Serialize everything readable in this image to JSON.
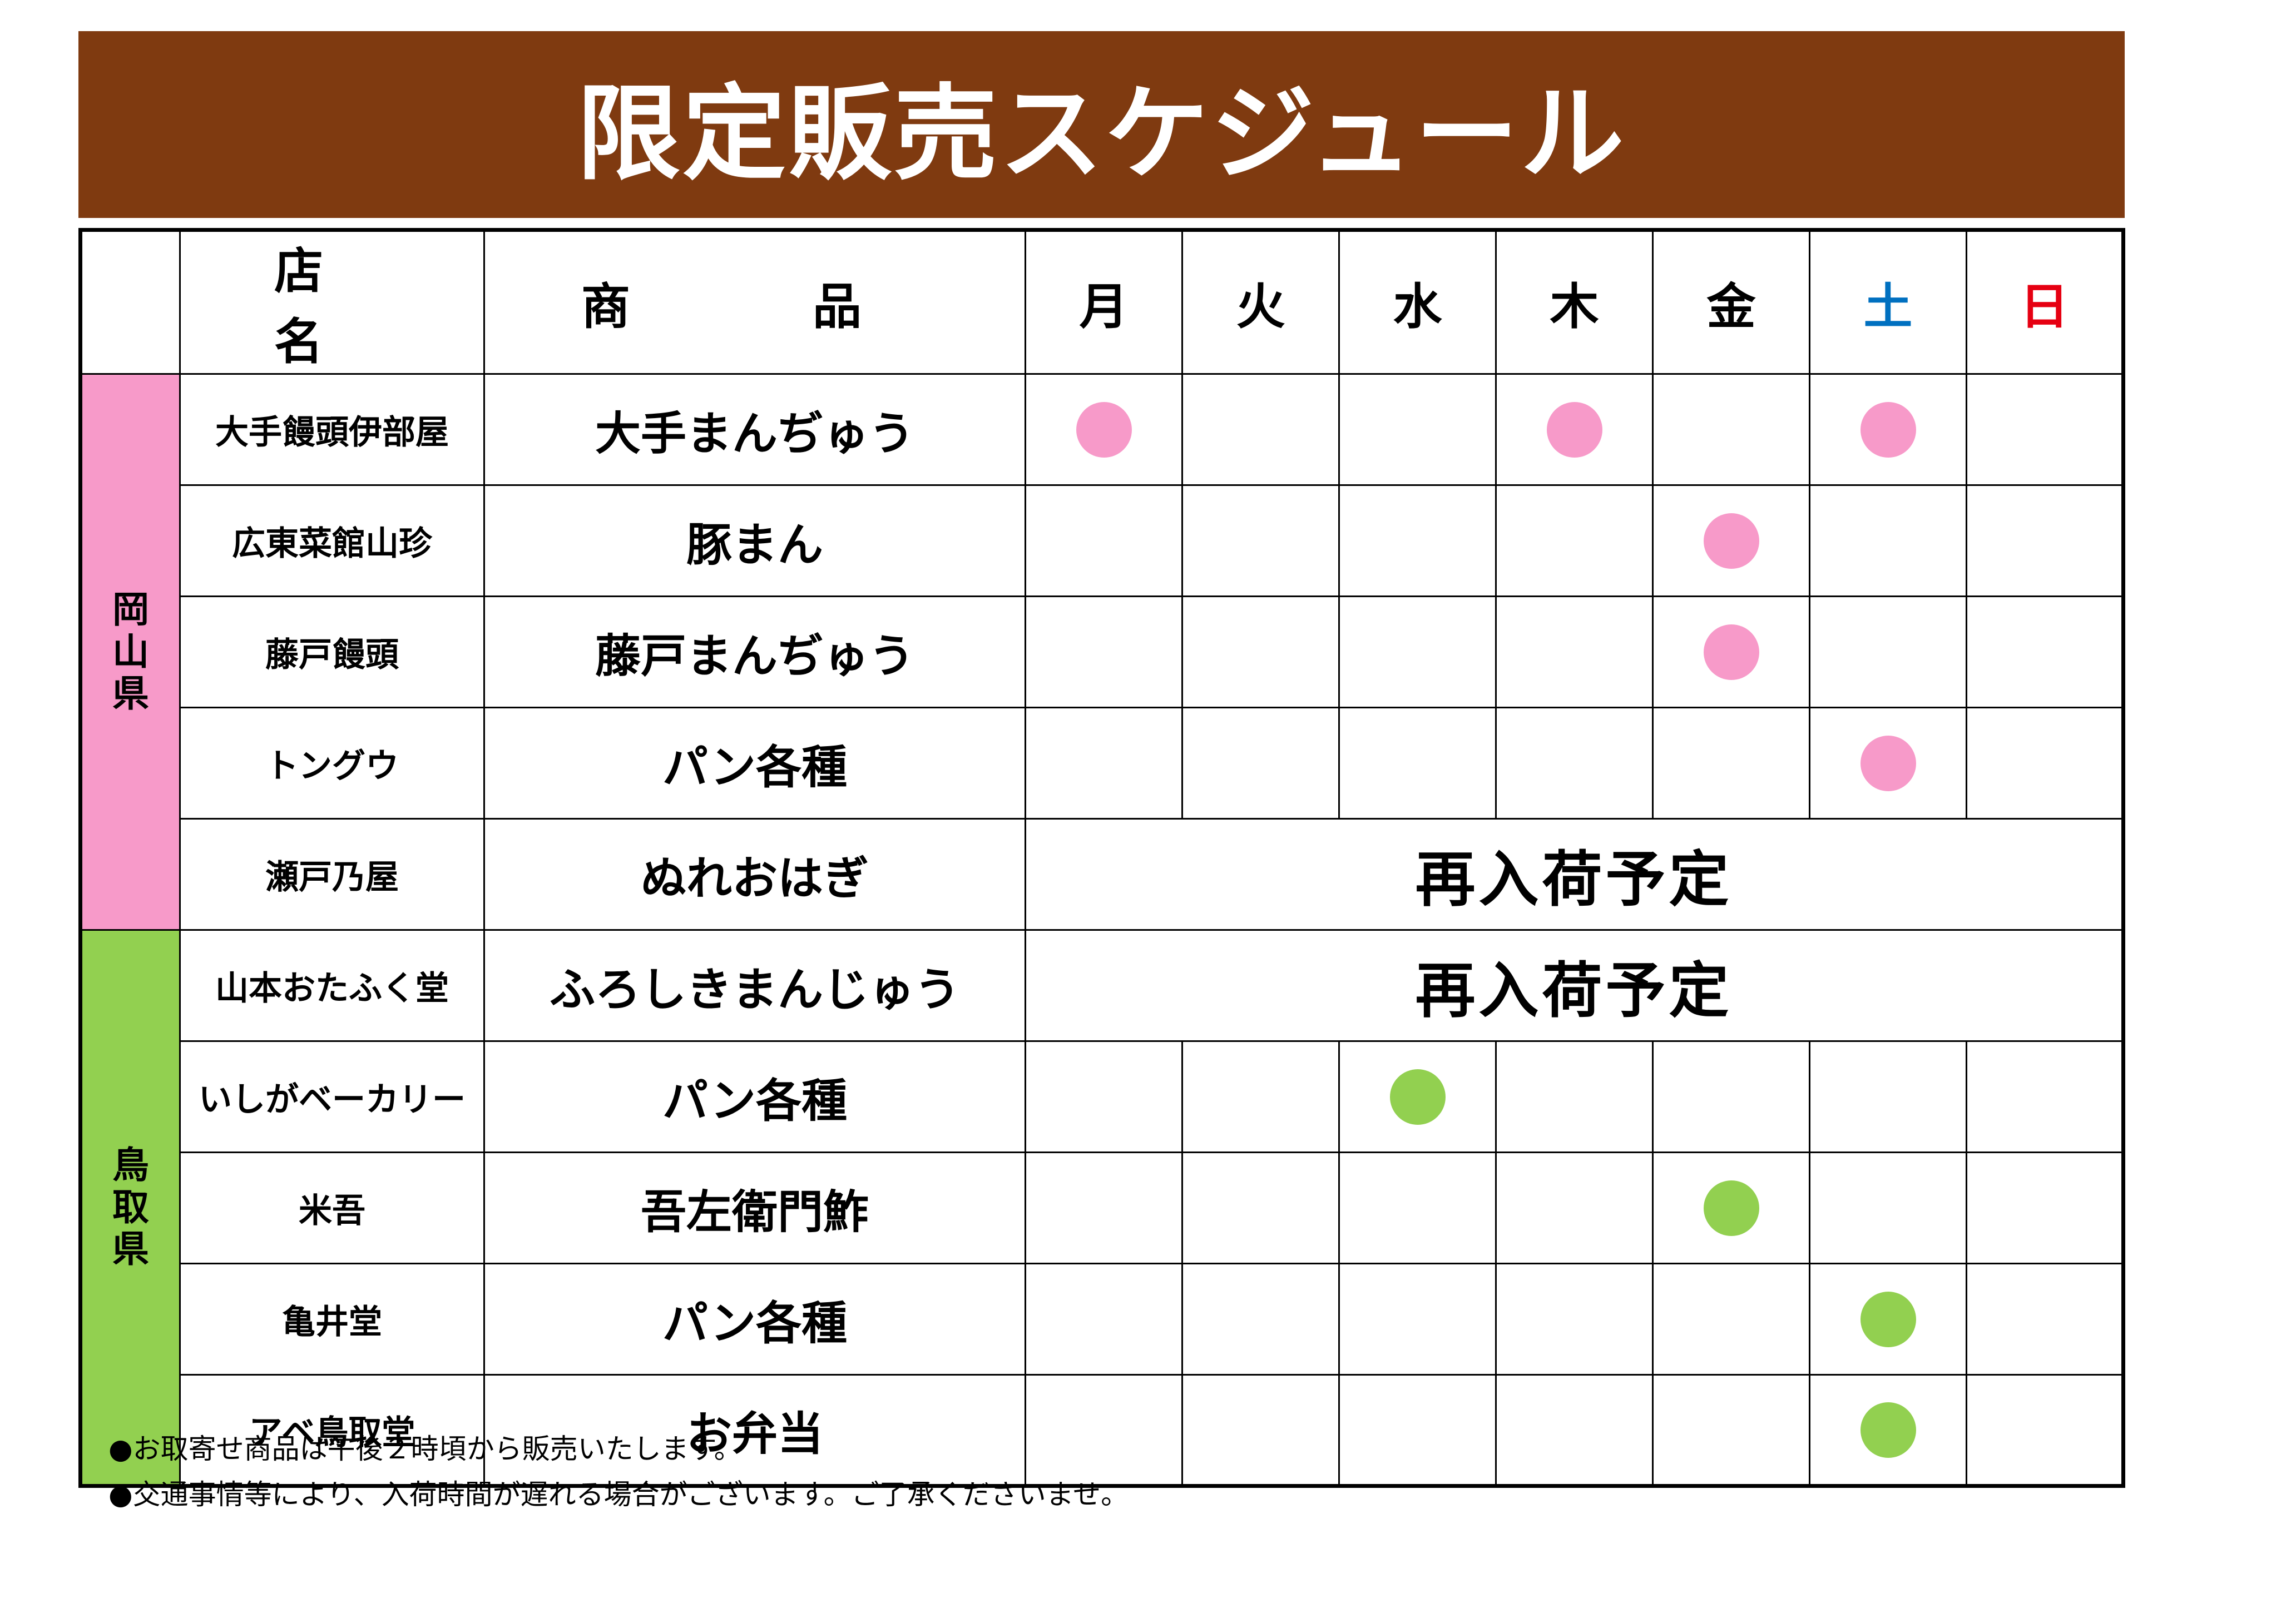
{
  "title": "限定販売スケジュール",
  "colors": {
    "banner": "#7f3a10",
    "okayama": "#f79ac9",
    "tottori": "#92d050",
    "saturday": "#0070c0",
    "sunday": "#e60012"
  },
  "header": {
    "store": "店　名",
    "product": "商　品",
    "days": [
      "月",
      "火",
      "水",
      "木",
      "金",
      "土",
      "日"
    ]
  },
  "prefectures": [
    {
      "name": "岡山県",
      "chars": [
        "岡",
        "山",
        "県"
      ],
      "color": "okayama"
    },
    {
      "name": "鳥取県",
      "chars": [
        "鳥",
        "取",
        "県"
      ],
      "color": "tottori"
    }
  ],
  "rows": [
    {
      "store": "大手饅頭伊部屋",
      "product": "大手まんぢゅう",
      "days": [
        true,
        false,
        false,
        true,
        false,
        true,
        false
      ]
    },
    {
      "store": "広東菜館山珍",
      "product": "豚まん",
      "days": [
        false,
        false,
        false,
        false,
        true,
        false,
        false
      ]
    },
    {
      "store": "藤戸饅頭",
      "product": "藤戸まんぢゅう",
      "days": [
        false,
        false,
        false,
        false,
        true,
        false,
        false
      ]
    },
    {
      "store": "トングウ",
      "product": "パン各種",
      "days": [
        false,
        false,
        false,
        false,
        false,
        true,
        false
      ]
    },
    {
      "store": "瀬戸乃屋",
      "product": "ぬれおはぎ",
      "status": "再入荷予定"
    },
    {
      "store": "山本おたふく堂",
      "product": "ふろしきまんじゅう",
      "status": "再入荷予定"
    },
    {
      "store": "いしがベーカリー",
      "product": "パン各種",
      "days": [
        false,
        false,
        true,
        false,
        false,
        false,
        false
      ]
    },
    {
      "store": "米吾",
      "product": "吾左衛門鮓",
      "days": [
        false,
        false,
        false,
        false,
        true,
        false,
        false
      ]
    },
    {
      "store": "亀井堂",
      "product": "パン各種",
      "days": [
        false,
        false,
        false,
        false,
        false,
        true,
        false
      ]
    },
    {
      "store": "アベ鳥取堂",
      "product": "お弁当",
      "days": [
        false,
        false,
        false,
        false,
        false,
        true,
        false
      ]
    }
  ],
  "notes": [
    "●お取寄せ商品は午後２時頃から販売いたします。",
    "●交通事情等により、入荷時間が遅れる場合がございます。ご了承くださいませ。"
  ]
}
